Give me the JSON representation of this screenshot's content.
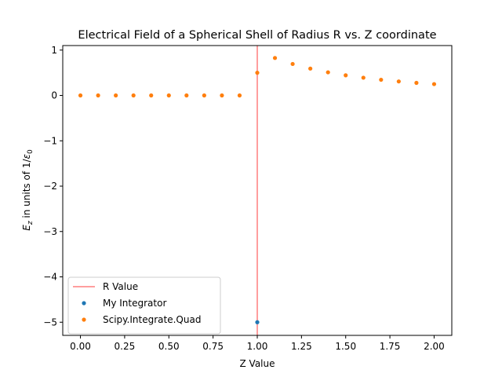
{
  "chart_data": {
    "type": "scatter",
    "title": "Electrical Field of a Spherical Shell of Radius R vs. Z coordinate",
    "xlabel": "Z Value",
    "ylabel_parts": {
      "e": "E",
      "z": "z",
      "mid": " in units of 1/",
      "eps": "ε",
      "zero": "0"
    },
    "xlim": [
      -0.1,
      2.1
    ],
    "ylim": [
      -5.29,
      1.1
    ],
    "x_ticks": [
      0.0,
      0.25,
      0.5,
      0.75,
      1.0,
      1.25,
      1.5,
      1.75,
      2.0
    ],
    "x_tick_labels": [
      "0.00",
      "0.25",
      "0.50",
      "0.75",
      "1.00",
      "1.25",
      "1.50",
      "1.75",
      "2.00"
    ],
    "y_ticks": [
      1,
      0,
      -1,
      -2,
      -3,
      -4,
      -5
    ],
    "y_tick_labels": [
      "1",
      "0",
      "−1",
      "−2",
      "−3",
      "−4",
      "−5"
    ],
    "grid": false,
    "legend_position": "lower-left",
    "vline": {
      "name": "R Value",
      "x": 1.0,
      "color": "#ff7f7f"
    },
    "series": [
      {
        "name": "My Integrator",
        "color": "#1f77b4",
        "x": [
          1.0
        ],
        "y": [
          -5.0
        ]
      },
      {
        "name": "Scipy.Integrate.Quad",
        "color": "#ff7f0e",
        "x": [
          0.0,
          0.1,
          0.2,
          0.3,
          0.4,
          0.5,
          0.6,
          0.7,
          0.8,
          0.9,
          1.0,
          1.1,
          1.2,
          1.3,
          1.4,
          1.5,
          1.6,
          1.7,
          1.8,
          1.9,
          2.0
        ],
        "y": [
          0,
          0,
          0,
          0,
          0,
          0,
          0,
          0,
          0,
          0,
          0.5,
          0.826,
          0.694,
          0.592,
          0.51,
          0.444,
          0.391,
          0.346,
          0.309,
          0.277,
          0.25
        ]
      }
    ]
  }
}
